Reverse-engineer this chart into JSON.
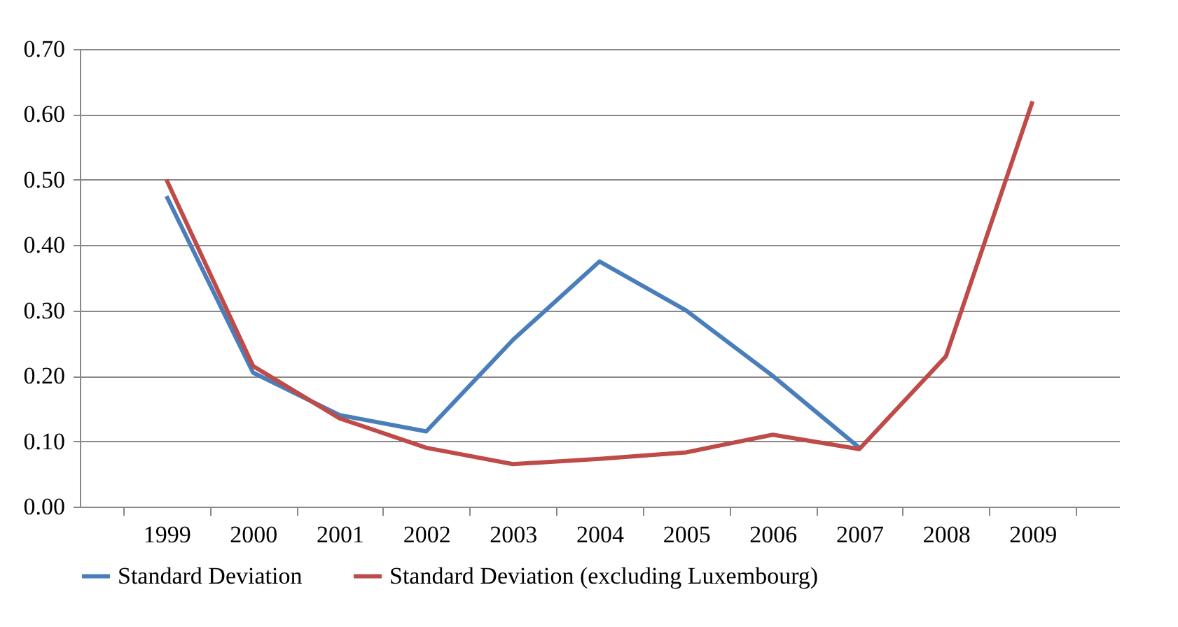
{
  "chart_data": {
    "type": "line",
    "categories": [
      "1999",
      "2000",
      "2001",
      "2002",
      "2003",
      "2004",
      "2005",
      "2006",
      "2007",
      "2008",
      "2009"
    ],
    "series": [
      {
        "name": "Standard Deviation",
        "color": "#4a7ebb",
        "values": [
          0.475,
          0.205,
          0.14,
          0.115,
          0.255,
          0.375,
          0.3,
          0.2,
          0.09,
          null,
          null
        ]
      },
      {
        "name": "Standard Deviation (excluding Luxembourg)",
        "color": "#be4b48",
        "values": [
          0.5,
          0.215,
          0.135,
          0.09,
          0.065,
          0.073,
          0.083,
          0.11,
          0.088,
          0.23,
          0.62
        ]
      }
    ],
    "ylim": [
      0,
      0.7
    ],
    "yticks": [
      {
        "value": 0,
        "label": "0.00"
      },
      {
        "value": 0.1,
        "label": "0.10"
      },
      {
        "value": 0.2,
        "label": "0.20"
      },
      {
        "value": 0.3,
        "label": "0.30"
      },
      {
        "value": 0.4,
        "label": "0.40"
      },
      {
        "value": 0.5,
        "label": "0.50"
      },
      {
        "value": 0.6,
        "label": "0.60"
      },
      {
        "value": 0.7,
        "label": "0.70"
      }
    ],
    "grid": "y",
    "legend": "bottom",
    "line_style": "solid",
    "marker": "none"
  }
}
